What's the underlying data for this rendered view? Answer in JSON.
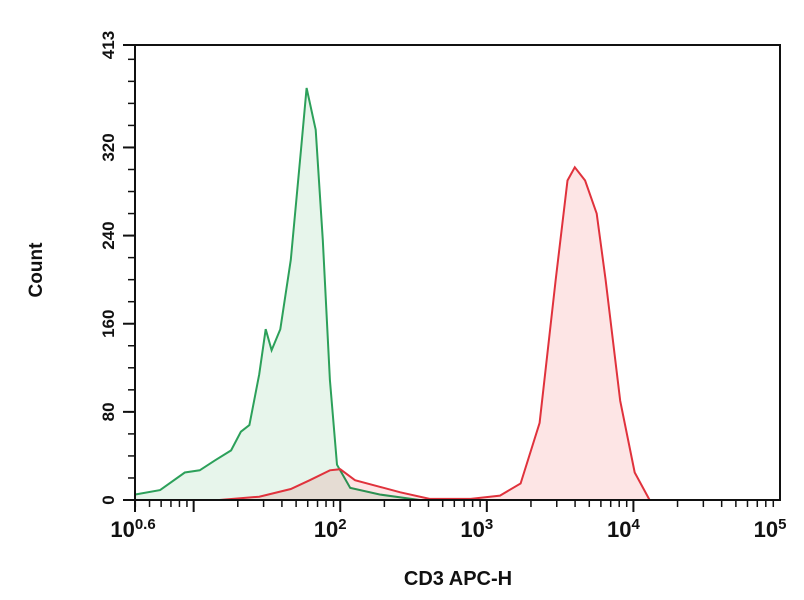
{
  "chart_data": {
    "type": "area",
    "title": "",
    "xlabel": "CD3 APC-H",
    "ylabel": "Count",
    "xscale": "log10",
    "xlim": [
      3.98,
      100000
    ],
    "ylim": [
      0,
      413
    ],
    "x_ticks": [
      {
        "base": "10",
        "exp": "0.6",
        "value": 3.98
      },
      {
        "base": "10",
        "exp": "2",
        "value": 100
      },
      {
        "base": "10",
        "exp": "3",
        "value": 1000
      },
      {
        "base": "10",
        "exp": "4",
        "value": 10000
      },
      {
        "base": "10",
        "exp": "5",
        "value": 100000
      }
    ],
    "y_ticks": [
      "0",
      "80",
      "160",
      "240",
      "320",
      "413"
    ],
    "grid": false,
    "series": [
      {
        "color": "#2ca05a",
        "fill": "#e3f3e7",
        "x": [
          4,
          5.9,
          8.7,
          11,
          14,
          18,
          21,
          24,
          28,
          31,
          34,
          39,
          46,
          54,
          59,
          68,
          76,
          85,
          95,
          117,
          186,
          347
        ],
        "y": [
          5,
          9,
          25,
          27,
          36,
          45,
          62,
          68,
          114,
          155,
          136,
          155,
          218,
          318,
          374,
          336,
          236,
          109,
          32,
          11,
          5,
          0
        ]
      },
      {
        "color": "#e0323c",
        "fill": "#fde0e0",
        "x": [
          15,
          28,
          46,
          62,
          85,
          100,
          126,
          186,
          257,
          407,
          776,
          1230,
          1700,
          2290,
          2950,
          3550,
          3980,
          4680,
          5620,
          6460,
          8130,
          10200,
          12900
        ],
        "y": [
          0,
          3,
          10,
          18,
          27,
          28,
          18,
          12,
          7,
          1,
          1,
          4,
          15,
          70,
          200,
          290,
          302,
          290,
          260,
          200,
          90,
          25,
          0
        ]
      }
    ]
  }
}
